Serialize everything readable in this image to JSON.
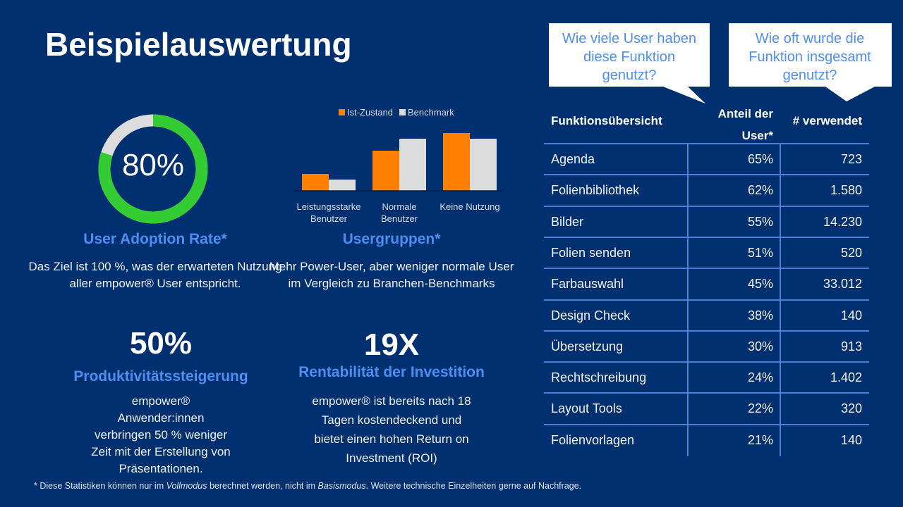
{
  "title": "Beispielauswertung",
  "adoption": {
    "value_label": "80%",
    "value": 0.8,
    "heading": "User Adoption Rate*",
    "body": "Das Ziel ist 100 %, was der erwarteten Nutzung aller empower® User entspricht.",
    "colors": {
      "filled": "#33cc33",
      "remaining": "#dcdcdc"
    }
  },
  "usergroups": {
    "heading": "Usergruppen*",
    "body": "Mehr Power-User, aber weniger normale User im Vergleich zu Branchen-Benchmarks"
  },
  "productivity": {
    "big": "50%",
    "heading": "Produktivitätssteigerung",
    "body": "empower® Anwender:innen verbringen 50 % weniger Zeit mit der Erstellung von Präsentationen."
  },
  "roi": {
    "big": "19X",
    "heading": "Rentabilität der Investition",
    "body": "empower® ist bereits nach 18 Tagen kostendeckend und bietet einen hohen Return on Investment (ROI)"
  },
  "chart_data": {
    "type": "bar",
    "title": "",
    "xlabel": "",
    "ylabel": "",
    "categories": [
      [
        "Leistungsstarke",
        "Benutzer"
      ],
      [
        "Normale",
        "Benutzer"
      ],
      [
        "Keine Nutzung"
      ]
    ],
    "series": [
      {
        "name": "Ist-Zustand",
        "color": "#ff8000",
        "values": [
          24,
          57,
          82
        ]
      },
      {
        "name": "Benchmark",
        "color": "#dcdcdc",
        "values": [
          16,
          74,
          74
        ]
      }
    ],
    "ylim": [
      0,
      90
    ],
    "grid": false,
    "legend": "top-center"
  },
  "callouts": [
    {
      "lines": [
        "Wie viele User haben",
        "diese Funktion",
        "genutzt?"
      ]
    },
    {
      "lines": [
        "Wie oft wurde die",
        "Funktion insgesamt",
        "genutzt?"
      ]
    }
  ],
  "table": {
    "headers": {
      "name": "Funktionsübersicht",
      "share_line1": "Anteil der",
      "share_line2": "User*",
      "count": "# verwendet"
    },
    "rows": [
      {
        "name": "Agenda",
        "share": "65%",
        "count": "723"
      },
      {
        "name": "Folienbibliothek",
        "share": "62%",
        "count": "1.580"
      },
      {
        "name": "Bilder",
        "share": "55%",
        "count": "14.230"
      },
      {
        "name": "Folien senden",
        "share": "51%",
        "count": "520"
      },
      {
        "name": "Farbauswahl",
        "share": "45%",
        "count": "33.012"
      },
      {
        "name": "Design Check",
        "share": "38%",
        "count": "140"
      },
      {
        "name": "Übersetzung",
        "share": "30%",
        "count": "913"
      },
      {
        "name": "Rechtschreibung",
        "share": "24%",
        "count": "1.402"
      },
      {
        "name": "Layout Tools",
        "share": "22%",
        "count": "320"
      },
      {
        "name": "Folienvorlagen",
        "share": "21%",
        "count": "140"
      }
    ]
  },
  "footnote": {
    "part1": "* Diese Statistiken können nur im ",
    "italic1": "Vollmodus",
    "part2": " berechnet werden, nicht im ",
    "italic2": "Basismodus",
    "part3": ". Weitere technische Einzelheiten gerne auf Nachfrage."
  }
}
